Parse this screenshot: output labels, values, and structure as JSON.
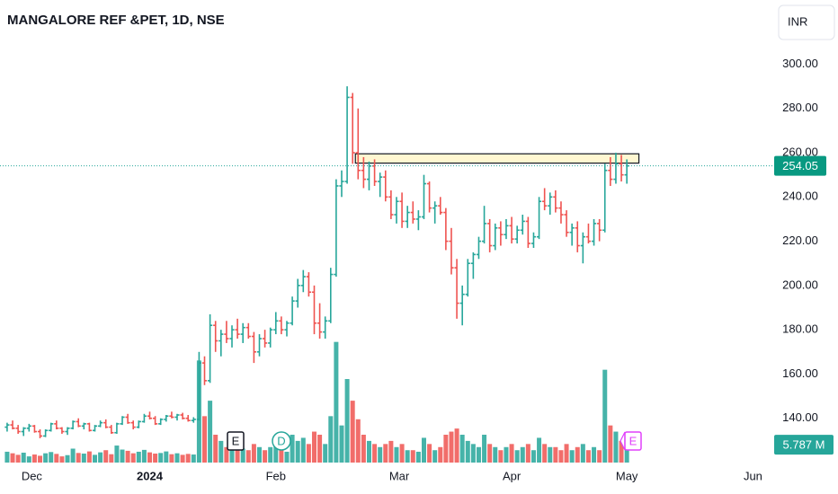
{
  "chart_data": {
    "type": "ohlc",
    "title": "MANGALORE REF &PET, 1D, NSE",
    "currency": "INR",
    "up_color": "#26a69a",
    "down_color": "#ef5350",
    "grid": false,
    "ylim": [
      120,
      329
    ],
    "yticks": [
      {
        "value": 140,
        "label": "140.00"
      },
      {
        "value": 160,
        "label": "160.00"
      },
      {
        "value": 180,
        "label": "180.00"
      },
      {
        "value": 200,
        "label": "200.00"
      },
      {
        "value": 220,
        "label": "220.00"
      },
      {
        "value": 240,
        "label": "240.00"
      },
      {
        "value": 260,
        "label": "260.00"
      },
      {
        "value": 280,
        "label": "280.00"
      },
      {
        "value": 300,
        "label": "300.00"
      }
    ],
    "xlim": [
      -1.3,
      139.7
    ],
    "xticks": [
      {
        "value": 4.5,
        "label": "Dec"
      },
      {
        "value": 26,
        "label": "2024"
      },
      {
        "value": 49,
        "label": "Feb"
      },
      {
        "value": 71.5,
        "label": "Mar"
      },
      {
        "value": 92,
        "label": "Apr"
      },
      {
        "value": 113,
        "label": "May"
      },
      {
        "value": 136,
        "label": "Jun"
      }
    ],
    "vlim": [
      0,
      45
    ],
    "last_price": 254.05,
    "last_volume": {
      "value": 5.787,
      "label": "5.787 M"
    },
    "zone": {
      "top": 259.5,
      "bottom": 255.3,
      "from": 63.5,
      "to": 115.2
    },
    "events": [
      "E",
      "D",
      "E"
    ],
    "bars": [
      [
        136,
        138,
        134,
        137,
        3.5
      ],
      [
        137,
        139,
        135,
        135.5,
        3.0
      ],
      [
        135.5,
        137,
        133,
        134,
        2.5
      ],
      [
        134,
        136,
        132,
        135.5,
        3.2
      ],
      [
        135.5,
        137.5,
        134,
        136.5,
        2.0
      ],
      [
        136.5,
        137,
        133.5,
        134,
        2.6
      ],
      [
        134,
        135,
        131,
        132,
        2.2
      ],
      [
        132,
        135,
        131.5,
        134.5,
        3.0
      ],
      [
        134.5,
        138,
        134,
        137.5,
        3.4
      ],
      [
        137.5,
        139,
        135,
        135.5,
        2.8
      ],
      [
        135.5,
        136,
        133,
        134,
        2.0
      ],
      [
        134,
        136,
        132.5,
        135.5,
        2.4
      ],
      [
        135.5,
        139,
        135,
        138.5,
        4.5
      ],
      [
        138.5,
        140,
        136,
        136.5,
        3.1
      ],
      [
        136.5,
        138,
        135,
        137.5,
        2.9
      ],
      [
        137.5,
        138,
        134,
        134.5,
        3.6
      ],
      [
        134.5,
        137,
        134,
        136.5,
        2.5
      ],
      [
        136.5,
        139,
        136,
        138,
        3.3
      ],
      [
        138,
        139.5,
        135.5,
        136,
        4.0
      ],
      [
        136,
        137,
        133,
        133.5,
        2.7
      ],
      [
        133.5,
        138,
        133,
        137.5,
        5.5
      ],
      [
        137.5,
        141,
        137,
        140.5,
        4.2
      ],
      [
        140.5,
        142,
        137.5,
        138,
        3.8
      ],
      [
        138,
        139,
        135,
        136,
        3.0
      ],
      [
        136,
        139,
        135.5,
        138.5,
        3.5
      ],
      [
        138.5,
        142,
        138,
        141,
        4.1
      ],
      [
        141,
        143,
        139.5,
        140,
        3.3
      ],
      [
        140,
        141,
        137,
        137.5,
        2.9
      ],
      [
        137.5,
        140,
        137,
        139.5,
        3.1
      ],
      [
        139.5,
        141.5,
        138.5,
        141,
        3.6
      ],
      [
        141,
        143,
        140,
        140.5,
        2.7
      ],
      [
        140.5,
        142,
        139,
        141.5,
        3.0
      ],
      [
        141.5,
        142.5,
        139.5,
        140,
        2.5
      ],
      [
        140,
        141.5,
        138.5,
        139,
        2.8
      ],
      [
        139,
        140.5,
        138,
        139.5,
        2.6
      ],
      [
        139.5,
        170,
        139,
        165,
        33
      ],
      [
        165,
        168,
        155,
        157,
        15
      ],
      [
        157,
        187,
        156,
        182,
        20
      ],
      [
        182,
        184,
        170,
        175,
        9
      ],
      [
        175,
        180,
        168,
        178,
        7
      ],
      [
        178,
        184,
        174,
        176,
        5
      ],
      [
        176,
        182,
        172,
        180,
        6
      ],
      [
        180,
        185,
        176,
        178,
        5
      ],
      [
        178,
        183,
        174,
        181,
        4.5
      ],
      [
        181,
        183,
        176,
        177,
        4
      ],
      [
        177,
        179,
        165,
        170,
        6
      ],
      [
        170,
        178,
        168,
        176,
        5
      ],
      [
        176,
        180,
        172,
        174,
        4
      ],
      [
        174,
        181,
        172,
        180,
        5
      ],
      [
        180,
        188,
        178,
        184,
        7
      ],
      [
        184,
        186,
        178,
        180,
        4
      ],
      [
        180,
        184,
        177,
        183,
        3.5
      ],
      [
        183,
        195,
        182,
        193,
        9
      ],
      [
        193,
        203,
        190,
        200,
        7
      ],
      [
        200,
        207,
        197,
        204,
        8
      ],
      [
        204,
        206,
        195,
        197,
        6
      ],
      [
        197,
        200,
        178,
        183,
        10
      ],
      [
        183,
        192,
        176,
        179,
        9
      ],
      [
        179,
        186,
        176,
        184,
        6
      ],
      [
        184,
        208,
        183,
        205,
        15
      ],
      [
        205,
        248,
        204,
        245,
        39
      ],
      [
        245,
        252,
        240,
        247,
        12
      ],
      [
        247,
        290,
        246,
        285,
        27
      ],
      [
        285,
        287,
        255,
        260,
        20
      ],
      [
        260,
        280,
        248,
        252,
        14
      ],
      [
        252,
        258,
        244,
        248,
        9
      ],
      [
        248,
        256,
        243,
        254,
        7
      ],
      [
        254,
        257,
        245,
        247,
        6
      ],
      [
        247,
        251,
        240,
        249,
        5
      ],
      [
        249,
        252,
        238,
        240,
        6
      ],
      [
        240,
        243,
        230,
        232,
        7
      ],
      [
        232,
        240,
        228,
        238,
        5
      ],
      [
        238,
        242,
        226,
        229,
        6
      ],
      [
        229,
        236,
        226,
        233,
        4
      ],
      [
        233,
        238,
        228,
        230,
        4
      ],
      [
        230,
        234,
        225,
        231,
        3.5
      ],
      [
        231,
        250,
        230,
        246,
        8
      ],
      [
        246,
        247,
        233,
        235,
        6
      ],
      [
        235,
        238,
        228,
        236,
        4
      ],
      [
        236,
        240,
        232,
        233,
        5
      ],
      [
        233,
        235,
        216,
        220,
        9
      ],
      [
        220,
        226,
        205,
        208,
        10
      ],
      [
        208,
        212,
        185,
        192,
        11
      ],
      [
        192,
        200,
        182,
        196,
        9
      ],
      [
        196,
        212,
        195,
        210,
        7
      ],
      [
        210,
        215,
        203,
        214,
        6
      ],
      [
        214,
        222,
        212,
        220,
        5
      ],
      [
        220,
        236,
        219,
        228,
        9
      ],
      [
        228,
        230,
        215,
        218,
        6
      ],
      [
        218,
        228,
        216,
        226,
        5
      ],
      [
        226,
        229,
        218,
        223,
        4
      ],
      [
        223,
        230,
        221,
        227,
        5
      ],
      [
        227,
        231,
        219,
        221,
        6
      ],
      [
        221,
        227,
        219,
        225,
        4
      ],
      [
        225,
        232,
        223,
        229,
        5
      ],
      [
        229,
        231,
        217,
        219,
        6
      ],
      [
        219,
        224,
        217,
        222,
        4
      ],
      [
        222,
        240,
        221,
        238,
        8
      ],
      [
        238,
        244,
        234,
        236,
        6
      ],
      [
        236,
        242,
        232,
        240,
        5
      ],
      [
        240,
        243,
        233,
        235,
        5
      ],
      [
        235,
        238,
        228,
        232,
        4
      ],
      [
        232,
        234,
        222,
        224,
        6
      ],
      [
        224,
        228,
        218,
        226,
        4
      ],
      [
        226,
        229,
        215,
        218,
        5
      ],
      [
        218,
        224,
        210,
        222,
        6
      ],
      [
        222,
        228,
        219,
        220,
        4
      ],
      [
        220,
        230,
        218,
        228,
        5
      ],
      [
        228,
        230,
        220,
        225,
        4
      ],
      [
        225,
        255,
        224,
        252,
        30
      ],
      [
        252,
        258,
        245,
        248,
        12
      ],
      [
        248,
        260,
        246,
        255,
        10
      ],
      [
        255,
        259,
        247,
        250,
        7
      ],
      [
        250,
        257,
        246,
        254.05,
        5.787
      ]
    ]
  }
}
